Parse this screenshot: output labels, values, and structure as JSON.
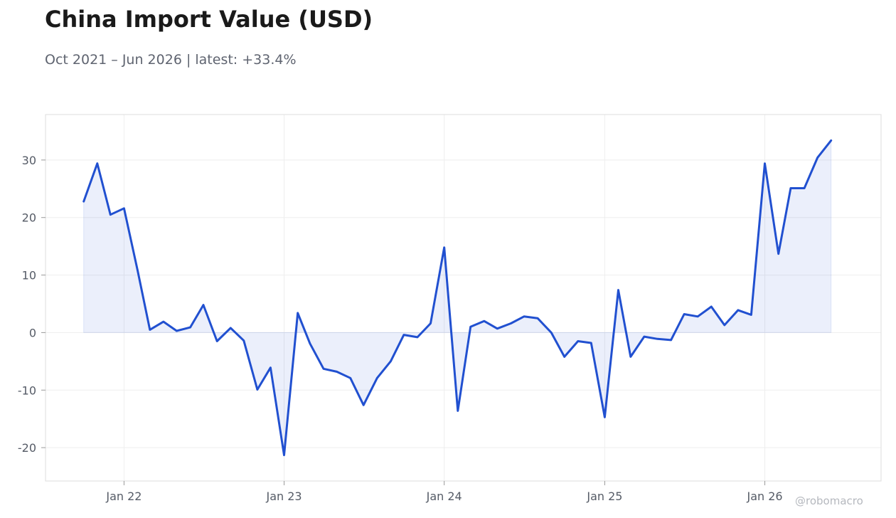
{
  "header": {
    "title": "China Import Value (USD)",
    "subtitle": "Oct 2021 – Jun 2026 | latest: +33.4%"
  },
  "watermark": "@robomacro",
  "colors": {
    "line": "#2150d0",
    "fill": "#2150d0",
    "grid": "#eeeeee",
    "frame": "#dddddd",
    "text": "#555b66"
  },
  "chart_data": {
    "type": "area",
    "title": "China Import Value (USD)",
    "subtitle": "Oct 2021 – Jun 2026 | latest: +33.4%",
    "xlabel": "",
    "ylabel": "",
    "x_ticks": [
      "Jan 22",
      "Jan 23",
      "Jan 24",
      "Jan 25",
      "Jan 26"
    ],
    "y_ticks": [
      -20,
      -10,
      0,
      10,
      20,
      30
    ],
    "ylim": [
      -25.8,
      37.9
    ],
    "xlim": [
      "2021-07-06",
      "2026-09-23"
    ],
    "grid": true,
    "series": [
      {
        "x": [
          "2021-10",
          "2021-11",
          "2021-12",
          "2022-01",
          "2022-02",
          "2022-03",
          "2022-04",
          "2022-05",
          "2022-06",
          "2022-07",
          "2022-08",
          "2022-09",
          "2022-10",
          "2022-11",
          "2022-12",
          "2023-01",
          "2023-02",
          "2023-03",
          "2023-04",
          "2023-05",
          "2023-06",
          "2023-07",
          "2023-08",
          "2023-09",
          "2023-10",
          "2023-11",
          "2023-12",
          "2024-01",
          "2024-02",
          "2024-03",
          "2024-04",
          "2024-05",
          "2024-06",
          "2024-07",
          "2024-08",
          "2024-09",
          "2024-10",
          "2024-11",
          "2024-12",
          "2025-01",
          "2025-02",
          "2025-03",
          "2025-04",
          "2025-05",
          "2025-06",
          "2025-07",
          "2025-08",
          "2025-09",
          "2025-10",
          "2025-11",
          "2025-12",
          "2026-01",
          "2026-02",
          "2026-03",
          "2026-04",
          "2026-05",
          "2026-06"
        ],
        "values": [
          22.8,
          29.4,
          20.5,
          21.6,
          10.8,
          0.5,
          1.9,
          0.3,
          0.9,
          4.8,
          -1.5,
          0.8,
          -1.4,
          -9.9,
          -6.1,
          -21.3,
          3.4,
          -1.9,
          -6.3,
          -6.8,
          -7.9,
          -12.6,
          -7.9,
          -5.0,
          -0.4,
          -0.8,
          1.6,
          14.8,
          -13.6,
          1.0,
          2.0,
          0.7,
          1.6,
          2.8,
          2.5,
          0.0,
          -4.2,
          -1.5,
          -1.8,
          -14.7,
          7.4,
          -4.2,
          -0.7,
          -1.1,
          -1.3,
          3.2,
          2.8,
          4.5,
          1.3,
          3.9,
          3.1,
          29.4,
          13.7,
          25.1,
          25.1,
          30.4,
          33.4
        ]
      }
    ]
  }
}
